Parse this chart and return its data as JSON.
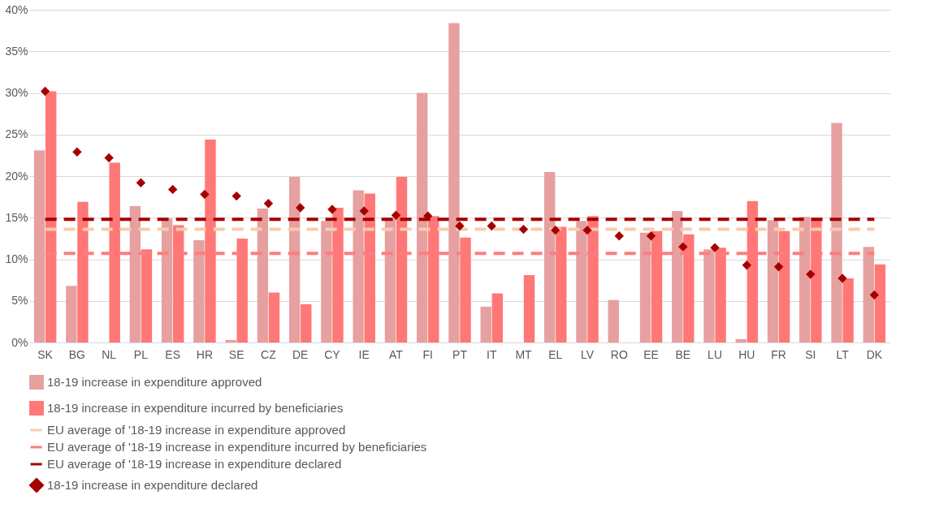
{
  "chart_data": {
    "type": "bar",
    "categories": [
      "SK",
      "BG",
      "NL",
      "PL",
      "ES",
      "HR",
      "SE",
      "CZ",
      "DE",
      "CY",
      "IE",
      "AT",
      "FI",
      "PT",
      "IT",
      "MT",
      "EL",
      "LV",
      "RO",
      "EE",
      "BE",
      "LU",
      "HU",
      "FR",
      "SI",
      "LT",
      "DK"
    ],
    "series": [
      {
        "name": "18-19 increase in expenditure approved",
        "color": "#e6a0a0",
        "values": [
          23.1,
          6.8,
          0,
          16.4,
          14.9,
          12.3,
          0.3,
          16.1,
          19.9,
          14.6,
          18.3,
          14.9,
          30.0,
          38.4,
          4.3,
          0,
          20.5,
          14.6,
          5.1,
          13.2,
          15.8,
          11.2,
          0.4,
          14.7,
          15.1,
          26.4,
          11.5
        ]
      },
      {
        "name": "18-19 increase in expenditure incurred by beneficiaries",
        "color": "#ff7777",
        "values": [
          30.2,
          16.9,
          21.6,
          11.2,
          14.1,
          24.4,
          12.5,
          6.0,
          4.6,
          16.2,
          17.9,
          19.9,
          15.2,
          12.6,
          5.9,
          8.1,
          13.9,
          15.2,
          0,
          13.4,
          13.0,
          11.4,
          17.0,
          13.4,
          15.0,
          7.7,
          9.4
        ]
      },
      {
        "name": "EU average of '18-19 increase in expenditure approved",
        "type": "line",
        "line_style": "dashed",
        "color": "#f8cbad",
        "values": [
          13.6,
          13.6,
          13.6,
          13.6,
          13.6,
          13.6,
          13.6,
          13.6,
          13.6,
          13.6,
          13.6,
          13.6,
          13.6,
          13.6,
          13.6,
          13.6,
          13.6,
          13.6,
          13.6,
          13.6,
          13.6,
          13.6,
          13.6,
          13.6,
          13.6,
          13.6,
          13.6
        ]
      },
      {
        "name": "EU average of '18-19 increase in expenditure incurred by beneficiaries",
        "type": "line",
        "line_style": "dashed",
        "color": "#ff7c80",
        "values": [
          10.7,
          10.7,
          10.7,
          10.7,
          10.7,
          10.7,
          10.7,
          10.7,
          10.7,
          10.7,
          10.7,
          10.7,
          10.7,
          10.7,
          10.7,
          10.7,
          10.7,
          10.7,
          10.7,
          10.7,
          10.7,
          10.7,
          10.7,
          10.7,
          10.7,
          10.7,
          10.7
        ]
      },
      {
        "name": "EU average of '18-19 increase in expenditure declared",
        "type": "line",
        "line_style": "dashed",
        "color": "#a50000",
        "values": [
          14.8,
          14.8,
          14.8,
          14.8,
          14.8,
          14.8,
          14.8,
          14.8,
          14.8,
          14.8,
          14.8,
          14.8,
          14.8,
          14.8,
          14.8,
          14.8,
          14.8,
          14.8,
          14.8,
          14.8,
          14.8,
          14.8,
          14.8,
          14.8,
          14.8,
          14.8,
          14.8
        ]
      },
      {
        "name": "18-19 increase in expenditure declared",
        "type": "scatter",
        "marker": "diamond",
        "color": "#a50000",
        "values": [
          30.2,
          22.9,
          22.2,
          19.2,
          18.4,
          17.8,
          17.6,
          16.7,
          16.2,
          16.0,
          15.8,
          15.3,
          15.2,
          14.0,
          14.0,
          13.6,
          13.5,
          13.5,
          12.8,
          12.8,
          11.5,
          11.4,
          9.3,
          9.1,
          8.2,
          7.7,
          5.7
        ]
      }
    ],
    "ylim": [
      0,
      40
    ],
    "yticks": [
      {
        "value": 0,
        "label": "0%"
      },
      {
        "value": 5,
        "label": "5%"
      },
      {
        "value": 10,
        "label": "10%"
      },
      {
        "value": 15,
        "label": "15%"
      },
      {
        "value": 20,
        "label": "20%"
      },
      {
        "value": 25,
        "label": "25%"
      },
      {
        "value": 30,
        "label": "30%"
      },
      {
        "value": 35,
        "label": "35%"
      },
      {
        "value": 40,
        "label": "40%"
      }
    ],
    "grid": "y",
    "legend": "bottom"
  }
}
